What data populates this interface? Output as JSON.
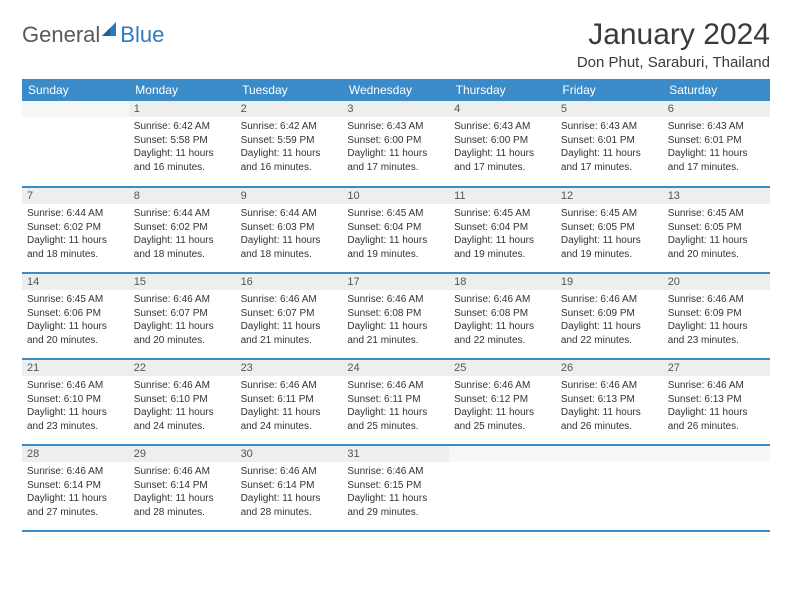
{
  "logo": {
    "general": "General",
    "blue": "Blue"
  },
  "title": "January 2024",
  "location": "Don Phut, Saraburi, Thailand",
  "colors": {
    "headerBg": "#3b8bc8",
    "headerText": "#ffffff",
    "dayNumBg": "#eeeeee",
    "border": "#3b8bc8",
    "logoBlue": "#2b7cbf"
  },
  "dayHeaders": [
    "Sunday",
    "Monday",
    "Tuesday",
    "Wednesday",
    "Thursday",
    "Friday",
    "Saturday"
  ],
  "weeks": [
    [
      {
        "num": "",
        "sunrise": "",
        "sunset": "",
        "daylight1": "",
        "daylight2": ""
      },
      {
        "num": "1",
        "sunrise": "Sunrise: 6:42 AM",
        "sunset": "Sunset: 5:58 PM",
        "daylight1": "Daylight: 11 hours",
        "daylight2": "and 16 minutes."
      },
      {
        "num": "2",
        "sunrise": "Sunrise: 6:42 AM",
        "sunset": "Sunset: 5:59 PM",
        "daylight1": "Daylight: 11 hours",
        "daylight2": "and 16 minutes."
      },
      {
        "num": "3",
        "sunrise": "Sunrise: 6:43 AM",
        "sunset": "Sunset: 6:00 PM",
        "daylight1": "Daylight: 11 hours",
        "daylight2": "and 17 minutes."
      },
      {
        "num": "4",
        "sunrise": "Sunrise: 6:43 AM",
        "sunset": "Sunset: 6:00 PM",
        "daylight1": "Daylight: 11 hours",
        "daylight2": "and 17 minutes."
      },
      {
        "num": "5",
        "sunrise": "Sunrise: 6:43 AM",
        "sunset": "Sunset: 6:01 PM",
        "daylight1": "Daylight: 11 hours",
        "daylight2": "and 17 minutes."
      },
      {
        "num": "6",
        "sunrise": "Sunrise: 6:43 AM",
        "sunset": "Sunset: 6:01 PM",
        "daylight1": "Daylight: 11 hours",
        "daylight2": "and 17 minutes."
      }
    ],
    [
      {
        "num": "7",
        "sunrise": "Sunrise: 6:44 AM",
        "sunset": "Sunset: 6:02 PM",
        "daylight1": "Daylight: 11 hours",
        "daylight2": "and 18 minutes."
      },
      {
        "num": "8",
        "sunrise": "Sunrise: 6:44 AM",
        "sunset": "Sunset: 6:02 PM",
        "daylight1": "Daylight: 11 hours",
        "daylight2": "and 18 minutes."
      },
      {
        "num": "9",
        "sunrise": "Sunrise: 6:44 AM",
        "sunset": "Sunset: 6:03 PM",
        "daylight1": "Daylight: 11 hours",
        "daylight2": "and 18 minutes."
      },
      {
        "num": "10",
        "sunrise": "Sunrise: 6:45 AM",
        "sunset": "Sunset: 6:04 PM",
        "daylight1": "Daylight: 11 hours",
        "daylight2": "and 19 minutes."
      },
      {
        "num": "11",
        "sunrise": "Sunrise: 6:45 AM",
        "sunset": "Sunset: 6:04 PM",
        "daylight1": "Daylight: 11 hours",
        "daylight2": "and 19 minutes."
      },
      {
        "num": "12",
        "sunrise": "Sunrise: 6:45 AM",
        "sunset": "Sunset: 6:05 PM",
        "daylight1": "Daylight: 11 hours",
        "daylight2": "and 19 minutes."
      },
      {
        "num": "13",
        "sunrise": "Sunrise: 6:45 AM",
        "sunset": "Sunset: 6:05 PM",
        "daylight1": "Daylight: 11 hours",
        "daylight2": "and 20 minutes."
      }
    ],
    [
      {
        "num": "14",
        "sunrise": "Sunrise: 6:45 AM",
        "sunset": "Sunset: 6:06 PM",
        "daylight1": "Daylight: 11 hours",
        "daylight2": "and 20 minutes."
      },
      {
        "num": "15",
        "sunrise": "Sunrise: 6:46 AM",
        "sunset": "Sunset: 6:07 PM",
        "daylight1": "Daylight: 11 hours",
        "daylight2": "and 20 minutes."
      },
      {
        "num": "16",
        "sunrise": "Sunrise: 6:46 AM",
        "sunset": "Sunset: 6:07 PM",
        "daylight1": "Daylight: 11 hours",
        "daylight2": "and 21 minutes."
      },
      {
        "num": "17",
        "sunrise": "Sunrise: 6:46 AM",
        "sunset": "Sunset: 6:08 PM",
        "daylight1": "Daylight: 11 hours",
        "daylight2": "and 21 minutes."
      },
      {
        "num": "18",
        "sunrise": "Sunrise: 6:46 AM",
        "sunset": "Sunset: 6:08 PM",
        "daylight1": "Daylight: 11 hours",
        "daylight2": "and 22 minutes."
      },
      {
        "num": "19",
        "sunrise": "Sunrise: 6:46 AM",
        "sunset": "Sunset: 6:09 PM",
        "daylight1": "Daylight: 11 hours",
        "daylight2": "and 22 minutes."
      },
      {
        "num": "20",
        "sunrise": "Sunrise: 6:46 AM",
        "sunset": "Sunset: 6:09 PM",
        "daylight1": "Daylight: 11 hours",
        "daylight2": "and 23 minutes."
      }
    ],
    [
      {
        "num": "21",
        "sunrise": "Sunrise: 6:46 AM",
        "sunset": "Sunset: 6:10 PM",
        "daylight1": "Daylight: 11 hours",
        "daylight2": "and 23 minutes."
      },
      {
        "num": "22",
        "sunrise": "Sunrise: 6:46 AM",
        "sunset": "Sunset: 6:10 PM",
        "daylight1": "Daylight: 11 hours",
        "daylight2": "and 24 minutes."
      },
      {
        "num": "23",
        "sunrise": "Sunrise: 6:46 AM",
        "sunset": "Sunset: 6:11 PM",
        "daylight1": "Daylight: 11 hours",
        "daylight2": "and 24 minutes."
      },
      {
        "num": "24",
        "sunrise": "Sunrise: 6:46 AM",
        "sunset": "Sunset: 6:11 PM",
        "daylight1": "Daylight: 11 hours",
        "daylight2": "and 25 minutes."
      },
      {
        "num": "25",
        "sunrise": "Sunrise: 6:46 AM",
        "sunset": "Sunset: 6:12 PM",
        "daylight1": "Daylight: 11 hours",
        "daylight2": "and 25 minutes."
      },
      {
        "num": "26",
        "sunrise": "Sunrise: 6:46 AM",
        "sunset": "Sunset: 6:13 PM",
        "daylight1": "Daylight: 11 hours",
        "daylight2": "and 26 minutes."
      },
      {
        "num": "27",
        "sunrise": "Sunrise: 6:46 AM",
        "sunset": "Sunset: 6:13 PM",
        "daylight1": "Daylight: 11 hours",
        "daylight2": "and 26 minutes."
      }
    ],
    [
      {
        "num": "28",
        "sunrise": "Sunrise: 6:46 AM",
        "sunset": "Sunset: 6:14 PM",
        "daylight1": "Daylight: 11 hours",
        "daylight2": "and 27 minutes."
      },
      {
        "num": "29",
        "sunrise": "Sunrise: 6:46 AM",
        "sunset": "Sunset: 6:14 PM",
        "daylight1": "Daylight: 11 hours",
        "daylight2": "and 28 minutes."
      },
      {
        "num": "30",
        "sunrise": "Sunrise: 6:46 AM",
        "sunset": "Sunset: 6:14 PM",
        "daylight1": "Daylight: 11 hours",
        "daylight2": "and 28 minutes."
      },
      {
        "num": "31",
        "sunrise": "Sunrise: 6:46 AM",
        "sunset": "Sunset: 6:15 PM",
        "daylight1": "Daylight: 11 hours",
        "daylight2": "and 29 minutes."
      },
      {
        "num": "",
        "sunrise": "",
        "sunset": "",
        "daylight1": "",
        "daylight2": ""
      },
      {
        "num": "",
        "sunrise": "",
        "sunset": "",
        "daylight1": "",
        "daylight2": ""
      },
      {
        "num": "",
        "sunrise": "",
        "sunset": "",
        "daylight1": "",
        "daylight2": ""
      }
    ]
  ]
}
